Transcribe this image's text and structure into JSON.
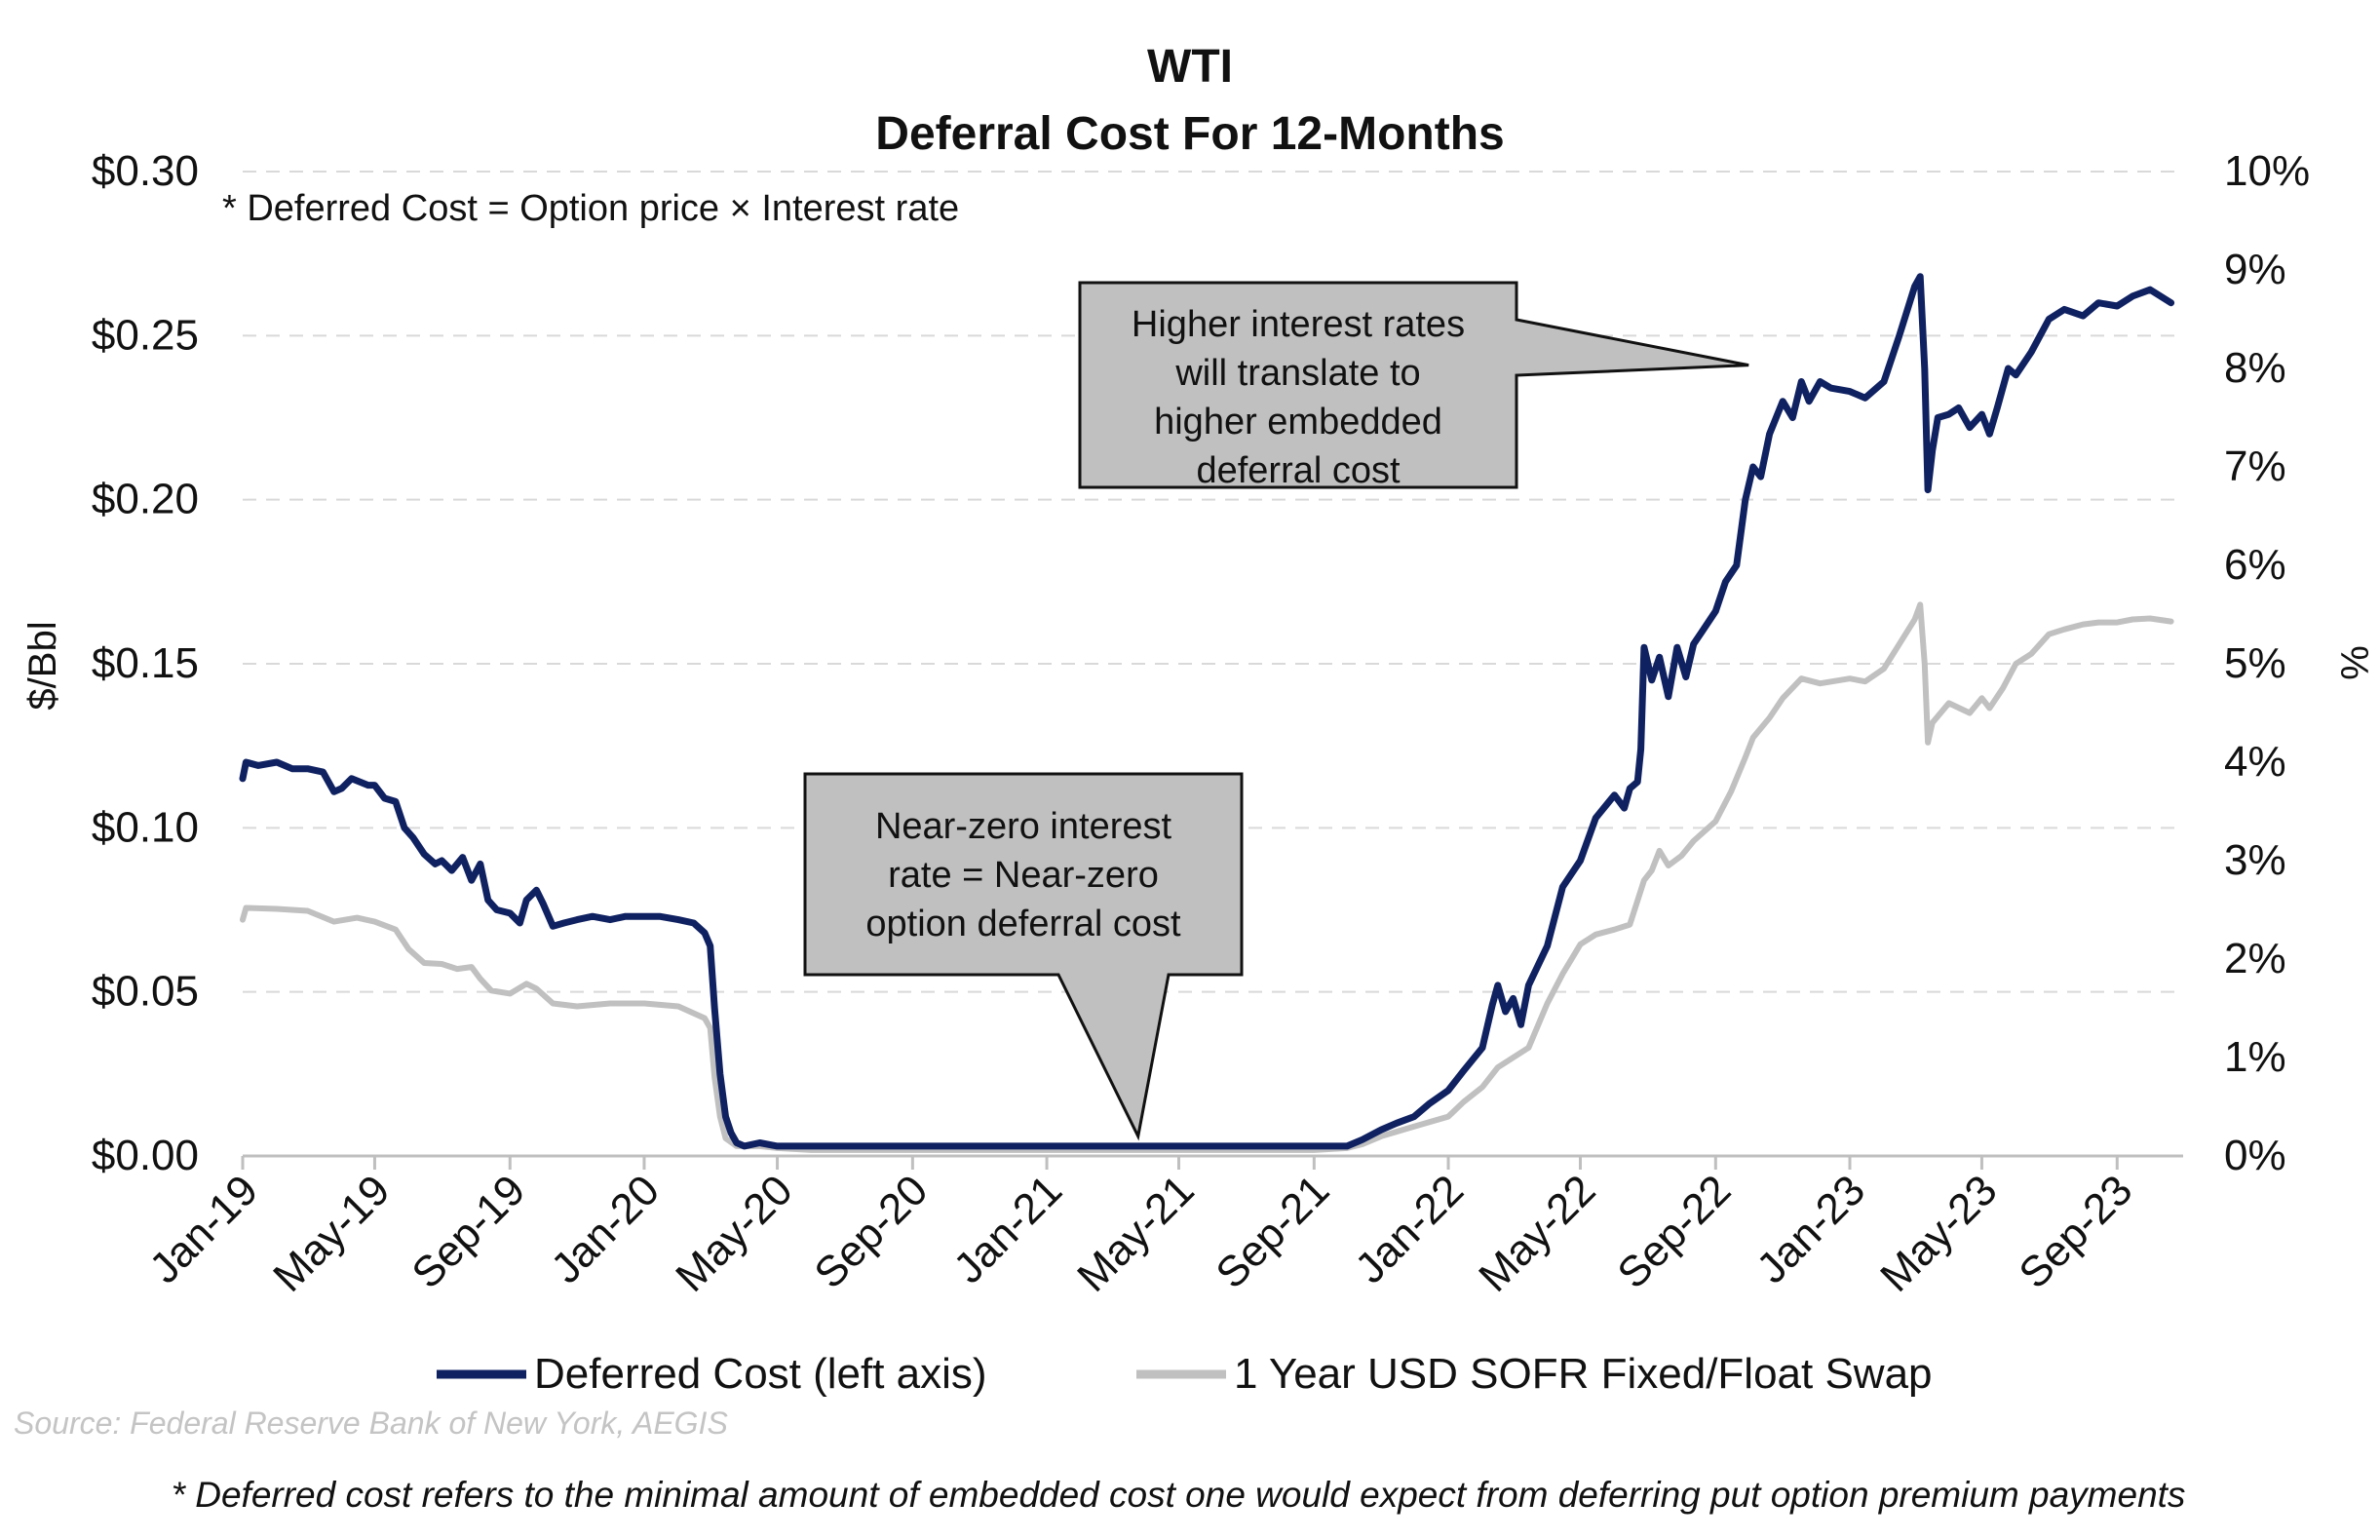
{
  "chart_data": {
    "type": "line",
    "title": "WTI",
    "subtitle": "Deferral Cost For 12-Months",
    "formula_note": "*  Deferred Cost = Option price × Interest rate",
    "ylabel_left": "$/Bbl",
    "ylabel_right": "%",
    "ylim_left": [
      0,
      0.3
    ],
    "ylim_right": [
      0,
      10
    ],
    "xlim": [
      "2019-01-01",
      "2023-10-31"
    ],
    "yticks_left": [
      {
        "value": 0.0,
        "label": "$0.00"
      },
      {
        "value": 0.05,
        "label": "$0.05"
      },
      {
        "value": 0.1,
        "label": "$0.10"
      },
      {
        "value": 0.15,
        "label": "$0.15"
      },
      {
        "value": 0.2,
        "label": "$0.20"
      },
      {
        "value": 0.25,
        "label": "$0.25"
      },
      {
        "value": 0.3,
        "label": "$0.30"
      }
    ],
    "yticks_right": [
      {
        "value": 0,
        "label": "0%"
      },
      {
        "value": 1,
        "label": "1%"
      },
      {
        "value": 2,
        "label": "2%"
      },
      {
        "value": 3,
        "label": "3%"
      },
      {
        "value": 4,
        "label": "4%"
      },
      {
        "value": 5,
        "label": "5%"
      },
      {
        "value": 6,
        "label": "6%"
      },
      {
        "value": 7,
        "label": "7%"
      },
      {
        "value": 8,
        "label": "8%"
      },
      {
        "value": 9,
        "label": "9%"
      },
      {
        "value": 10,
        "label": "10%"
      }
    ],
    "xticks": [
      {
        "date": "2019-01-01",
        "label": "Jan-19"
      },
      {
        "date": "2019-05-01",
        "label": "May-19"
      },
      {
        "date": "2019-09-01",
        "label": "Sep-19"
      },
      {
        "date": "2020-01-01",
        "label": "Jan-20"
      },
      {
        "date": "2020-05-01",
        "label": "May-20"
      },
      {
        "date": "2020-09-01",
        "label": "Sep-20"
      },
      {
        "date": "2021-01-01",
        "label": "Jan-21"
      },
      {
        "date": "2021-05-01",
        "label": "May-21"
      },
      {
        "date": "2021-09-01",
        "label": "Sep-21"
      },
      {
        "date": "2022-01-01",
        "label": "Jan-22"
      },
      {
        "date": "2022-05-01",
        "label": "May-22"
      },
      {
        "date": "2022-09-01",
        "label": "Sep-22"
      },
      {
        "date": "2023-01-01",
        "label": "Jan-23"
      },
      {
        "date": "2023-05-01",
        "label": "May-23"
      },
      {
        "date": "2023-09-01",
        "label": "Sep-23"
      }
    ],
    "grid": true,
    "legend_position": "bottom",
    "series": [
      {
        "name": "Deferred Cost (left axis)",
        "axis": "left",
        "color": "#0f2161",
        "points": [
          [
            "2019-01-01",
            0.115
          ],
          [
            "2019-01-04",
            0.12
          ],
          [
            "2019-01-15",
            0.119
          ],
          [
            "2019-02-01",
            0.12
          ],
          [
            "2019-02-15",
            0.118
          ],
          [
            "2019-03-01",
            0.118
          ],
          [
            "2019-03-15",
            0.117
          ],
          [
            "2019-03-25",
            0.111
          ],
          [
            "2019-04-01",
            0.112
          ],
          [
            "2019-04-10",
            0.115
          ],
          [
            "2019-04-25",
            0.113
          ],
          [
            "2019-05-01",
            0.113
          ],
          [
            "2019-05-10",
            0.109
          ],
          [
            "2019-05-20",
            0.108
          ],
          [
            "2019-05-28",
            0.1
          ],
          [
            "2019-06-05",
            0.097
          ],
          [
            "2019-06-15",
            0.092
          ],
          [
            "2019-06-25",
            0.089
          ],
          [
            "2019-07-01",
            0.09
          ],
          [
            "2019-07-10",
            0.087
          ],
          [
            "2019-07-20",
            0.091
          ],
          [
            "2019-07-28",
            0.084
          ],
          [
            "2019-08-05",
            0.089
          ],
          [
            "2019-08-12",
            0.078
          ],
          [
            "2019-08-20",
            0.075
          ],
          [
            "2019-09-01",
            0.074
          ],
          [
            "2019-09-10",
            0.071
          ],
          [
            "2019-09-16",
            0.078
          ],
          [
            "2019-09-25",
            0.081
          ],
          [
            "2019-10-01",
            0.077
          ],
          [
            "2019-10-10",
            0.07
          ],
          [
            "2019-10-20",
            0.071
          ],
          [
            "2019-11-01",
            0.072
          ],
          [
            "2019-11-15",
            0.073
          ],
          [
            "2019-12-01",
            0.072
          ],
          [
            "2019-12-15",
            0.073
          ],
          [
            "2020-01-01",
            0.073
          ],
          [
            "2020-01-15",
            0.073
          ],
          [
            "2020-02-01",
            0.072
          ],
          [
            "2020-02-15",
            0.071
          ],
          [
            "2020-02-25",
            0.068
          ],
          [
            "2020-03-01",
            0.064
          ],
          [
            "2020-03-05",
            0.045
          ],
          [
            "2020-03-10",
            0.025
          ],
          [
            "2020-03-15",
            0.012
          ],
          [
            "2020-03-20",
            0.007
          ],
          [
            "2020-03-25",
            0.004
          ],
          [
            "2020-04-01",
            0.003
          ],
          [
            "2020-04-15",
            0.004
          ],
          [
            "2020-05-01",
            0.003
          ],
          [
            "2020-05-15",
            0.003
          ],
          [
            "2020-06-01",
            0.003
          ],
          [
            "2020-06-15",
            0.003
          ],
          [
            "2020-07-01",
            0.003
          ],
          [
            "2020-08-01",
            0.003
          ],
          [
            "2020-09-01",
            0.003
          ],
          [
            "2020-10-01",
            0.003
          ],
          [
            "2020-11-01",
            0.003
          ],
          [
            "2020-12-01",
            0.003
          ],
          [
            "2021-01-01",
            0.003
          ],
          [
            "2021-02-01",
            0.003
          ],
          [
            "2021-03-01",
            0.003
          ],
          [
            "2021-04-01",
            0.003
          ],
          [
            "2021-05-01",
            0.003
          ],
          [
            "2021-06-01",
            0.003
          ],
          [
            "2021-07-01",
            0.003
          ],
          [
            "2021-08-01",
            0.003
          ],
          [
            "2021-09-01",
            0.003
          ],
          [
            "2021-10-01",
            0.003
          ],
          [
            "2021-10-15",
            0.005
          ],
          [
            "2021-11-01",
            0.008
          ],
          [
            "2021-11-15",
            0.01
          ],
          [
            "2021-12-01",
            0.012
          ],
          [
            "2021-12-15",
            0.016
          ],
          [
            "2022-01-01",
            0.02
          ],
          [
            "2022-01-15",
            0.026
          ],
          [
            "2022-02-01",
            0.033
          ],
          [
            "2022-02-10",
            0.046
          ],
          [
            "2022-02-15",
            0.052
          ],
          [
            "2022-02-22",
            0.044
          ],
          [
            "2022-03-01",
            0.048
          ],
          [
            "2022-03-08",
            0.04
          ],
          [
            "2022-03-15",
            0.052
          ],
          [
            "2022-04-01",
            0.064
          ],
          [
            "2022-04-15",
            0.082
          ],
          [
            "2022-05-01",
            0.09
          ],
          [
            "2022-05-15",
            0.103
          ],
          [
            "2022-06-01",
            0.11
          ],
          [
            "2022-06-10",
            0.106
          ],
          [
            "2022-06-15",
            0.112
          ],
          [
            "2022-06-22",
            0.114
          ],
          [
            "2022-06-25",
            0.124
          ],
          [
            "2022-06-28",
            0.155
          ],
          [
            "2022-07-05",
            0.145
          ],
          [
            "2022-07-12",
            0.152
          ],
          [
            "2022-07-20",
            0.14
          ],
          [
            "2022-07-28",
            0.155
          ],
          [
            "2022-08-05",
            0.146
          ],
          [
            "2022-08-12",
            0.156
          ],
          [
            "2022-08-20",
            0.16
          ],
          [
            "2022-09-01",
            0.166
          ],
          [
            "2022-09-10",
            0.175
          ],
          [
            "2022-09-20",
            0.18
          ],
          [
            "2022-09-28",
            0.2
          ],
          [
            "2022-10-05",
            0.21
          ],
          [
            "2022-10-12",
            0.207
          ],
          [
            "2022-10-20",
            0.22
          ],
          [
            "2022-11-01",
            0.23
          ],
          [
            "2022-11-10",
            0.225
          ],
          [
            "2022-11-18",
            0.236
          ],
          [
            "2022-11-25",
            0.23
          ],
          [
            "2022-12-05",
            0.236
          ],
          [
            "2022-12-15",
            0.234
          ],
          [
            "2023-01-01",
            0.233
          ],
          [
            "2023-01-15",
            0.231
          ],
          [
            "2023-02-01",
            0.236
          ],
          [
            "2023-02-15",
            0.25
          ],
          [
            "2023-03-01",
            0.265
          ],
          [
            "2023-03-06",
            0.268
          ],
          [
            "2023-03-10",
            0.24
          ],
          [
            "2023-03-13",
            0.203
          ],
          [
            "2023-03-17",
            0.215
          ],
          [
            "2023-03-22",
            0.225
          ],
          [
            "2023-04-01",
            0.226
          ],
          [
            "2023-04-10",
            0.228
          ],
          [
            "2023-04-20",
            0.222
          ],
          [
            "2023-05-01",
            0.226
          ],
          [
            "2023-05-08",
            0.22
          ],
          [
            "2023-05-15",
            0.228
          ],
          [
            "2023-05-25",
            0.24
          ],
          [
            "2023-06-01",
            0.238
          ],
          [
            "2023-06-15",
            0.245
          ],
          [
            "2023-07-01",
            0.255
          ],
          [
            "2023-07-15",
            0.258
          ],
          [
            "2023-08-01",
            0.256
          ],
          [
            "2023-08-15",
            0.26
          ],
          [
            "2023-09-01",
            0.259
          ],
          [
            "2023-09-15",
            0.262
          ],
          [
            "2023-10-01",
            0.264
          ],
          [
            "2023-10-20",
            0.26
          ]
        ]
      },
      {
        "name": "1 Year USD SOFR Fixed/Float Swap",
        "axis": "right",
        "color": "#c0c0c0",
        "points": [
          [
            "2019-01-01",
            2.4
          ],
          [
            "2019-01-04",
            2.52
          ],
          [
            "2019-02-01",
            2.51
          ],
          [
            "2019-03-01",
            2.49
          ],
          [
            "2019-03-25",
            2.38
          ],
          [
            "2019-04-15",
            2.42
          ],
          [
            "2019-05-01",
            2.38
          ],
          [
            "2019-05-20",
            2.3
          ],
          [
            "2019-06-01",
            2.1
          ],
          [
            "2019-06-15",
            1.96
          ],
          [
            "2019-07-01",
            1.95
          ],
          [
            "2019-07-15",
            1.9
          ],
          [
            "2019-07-28",
            1.92
          ],
          [
            "2019-08-05",
            1.8
          ],
          [
            "2019-08-15",
            1.68
          ],
          [
            "2019-09-01",
            1.65
          ],
          [
            "2019-09-16",
            1.75
          ],
          [
            "2019-09-25",
            1.7
          ],
          [
            "2019-10-10",
            1.55
          ],
          [
            "2019-11-01",
            1.52
          ],
          [
            "2019-12-01",
            1.55
          ],
          [
            "2020-01-01",
            1.55
          ],
          [
            "2020-02-01",
            1.52
          ],
          [
            "2020-02-25",
            1.4
          ],
          [
            "2020-03-01",
            1.3
          ],
          [
            "2020-03-05",
            0.8
          ],
          [
            "2020-03-10",
            0.4
          ],
          [
            "2020-03-15",
            0.18
          ],
          [
            "2020-03-25",
            0.1
          ],
          [
            "2020-04-15",
            0.1
          ],
          [
            "2020-05-01",
            0.08
          ],
          [
            "2020-06-01",
            0.06
          ],
          [
            "2020-07-01",
            0.06
          ],
          [
            "2020-09-01",
            0.06
          ],
          [
            "2020-11-01",
            0.06
          ],
          [
            "2021-01-01",
            0.06
          ],
          [
            "2021-03-01",
            0.06
          ],
          [
            "2021-05-01",
            0.06
          ],
          [
            "2021-07-01",
            0.06
          ],
          [
            "2021-09-01",
            0.06
          ],
          [
            "2021-10-01",
            0.08
          ],
          [
            "2021-10-15",
            0.12
          ],
          [
            "2021-11-01",
            0.2
          ],
          [
            "2021-12-01",
            0.3
          ],
          [
            "2022-01-01",
            0.4
          ],
          [
            "2022-01-15",
            0.55
          ],
          [
            "2022-02-01",
            0.7
          ],
          [
            "2022-02-15",
            0.9
          ],
          [
            "2022-03-01",
            1.0
          ],
          [
            "2022-03-15",
            1.1
          ],
          [
            "2022-04-01",
            1.55
          ],
          [
            "2022-04-15",
            1.85
          ],
          [
            "2022-05-01",
            2.15
          ],
          [
            "2022-05-15",
            2.25
          ],
          [
            "2022-06-01",
            2.3
          ],
          [
            "2022-06-15",
            2.35
          ],
          [
            "2022-06-28",
            2.8
          ],
          [
            "2022-07-05",
            2.9
          ],
          [
            "2022-07-12",
            3.1
          ],
          [
            "2022-07-20",
            2.95
          ],
          [
            "2022-08-01",
            3.05
          ],
          [
            "2022-08-12",
            3.2
          ],
          [
            "2022-09-01",
            3.4
          ],
          [
            "2022-09-15",
            3.7
          ],
          [
            "2022-09-28",
            4.05
          ],
          [
            "2022-10-05",
            4.25
          ],
          [
            "2022-10-20",
            4.45
          ],
          [
            "2022-11-01",
            4.65
          ],
          [
            "2022-11-18",
            4.85
          ],
          [
            "2022-12-05",
            4.8
          ],
          [
            "2023-01-01",
            4.85
          ],
          [
            "2023-01-15",
            4.82
          ],
          [
            "2023-02-01",
            4.95
          ],
          [
            "2023-02-15",
            5.2
          ],
          [
            "2023-03-01",
            5.45
          ],
          [
            "2023-03-06",
            5.6
          ],
          [
            "2023-03-10",
            5.0
          ],
          [
            "2023-03-13",
            4.2
          ],
          [
            "2023-03-17",
            4.4
          ],
          [
            "2023-04-01",
            4.6
          ],
          [
            "2023-04-20",
            4.5
          ],
          [
            "2023-05-01",
            4.65
          ],
          [
            "2023-05-08",
            4.55
          ],
          [
            "2023-05-20",
            4.75
          ],
          [
            "2023-06-01",
            5.0
          ],
          [
            "2023-06-15",
            5.1
          ],
          [
            "2023-07-01",
            5.3
          ],
          [
            "2023-07-15",
            5.35
          ],
          [
            "2023-08-01",
            5.4
          ],
          [
            "2023-08-15",
            5.42
          ],
          [
            "2023-09-01",
            5.42
          ],
          [
            "2023-09-15",
            5.45
          ],
          [
            "2023-10-01",
            5.46
          ],
          [
            "2023-10-20",
            5.43
          ]
        ]
      }
    ],
    "annotations": [
      {
        "id": "callout-higher-rates",
        "lines": [
          "Higher interest rates",
          "will translate to",
          "higher embedded",
          "deferral cost"
        ],
        "points_to": {
          "date": "2022-10-01",
          "value": 0.241
        },
        "fill": "#c0c0c0"
      },
      {
        "id": "callout-near-zero",
        "lines": [
          "Near-zero interest",
          "rate = Near-zero",
          "option deferral cost"
        ],
        "points_to": {
          "date": "2021-03-25",
          "value": 0.006
        },
        "fill": "#c0c0c0"
      }
    ],
    "source": "Source: Federal Reserve Bank of New York, AEGIS",
    "footnote": "* Deferred cost refers to the minimal amount of embedded cost one would expect from deferring put option premium payments"
  }
}
